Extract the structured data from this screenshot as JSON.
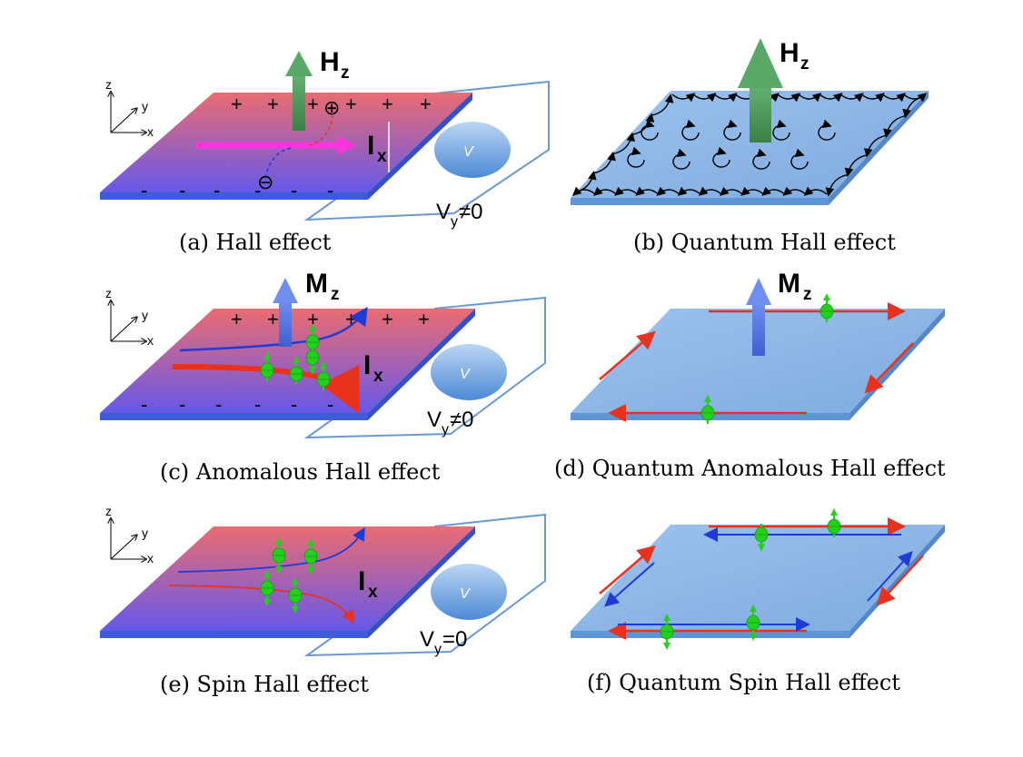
{
  "panels": {
    "a": {
      "caption": "(a) Hall effect",
      "field": "H",
      "field_sub": "z",
      "current": "I",
      "current_sub": "x",
      "voltage": "V",
      "voltage_sub": "y",
      "voltage_rel": "≠0",
      "plus": "+",
      "minus": "-"
    },
    "b": {
      "caption": "(b) Quantum Hall effect",
      "field": "H",
      "field_sub": "z"
    },
    "c": {
      "caption": "(c) Anomalous Hall effect",
      "field": "M",
      "field_sub": "z",
      "current": "I",
      "current_sub": "x",
      "voltage": "V",
      "voltage_sub": "y",
      "voltage_rel": "≠0",
      "plus": "+",
      "minus": "-"
    },
    "d": {
      "caption": "(d) Quantum Anomalous Hall effect",
      "field": "M",
      "field_sub": "z"
    },
    "e": {
      "caption": "(e) Spin Hall effect",
      "current": "I",
      "current_sub": "x",
      "voltage": "V",
      "voltage_sub": "y",
      "voltage_rel": "=0"
    },
    "f": {
      "caption": "(f) Quantum Spin Hall effect"
    }
  },
  "axes": {
    "x": "x",
    "y": "y",
    "z": "z"
  },
  "meter_label": "V",
  "carriers": {
    "positive": "⊕",
    "negative": "⊖"
  },
  "colors": {
    "plate_top": "#e86a73",
    "plate_bottom": "#6a5ee8",
    "plate_edge": "#3d5cd6",
    "qplate": "#8fb8e8",
    "qplate_edge": "#5f95d4",
    "green_arrow": "#4a9a5a",
    "blue_arrow": "#5a7ae0",
    "magenta": "#ff33dd",
    "red": "#e8321e",
    "blue": "#1f3ad6",
    "spin": "#22d11c"
  }
}
